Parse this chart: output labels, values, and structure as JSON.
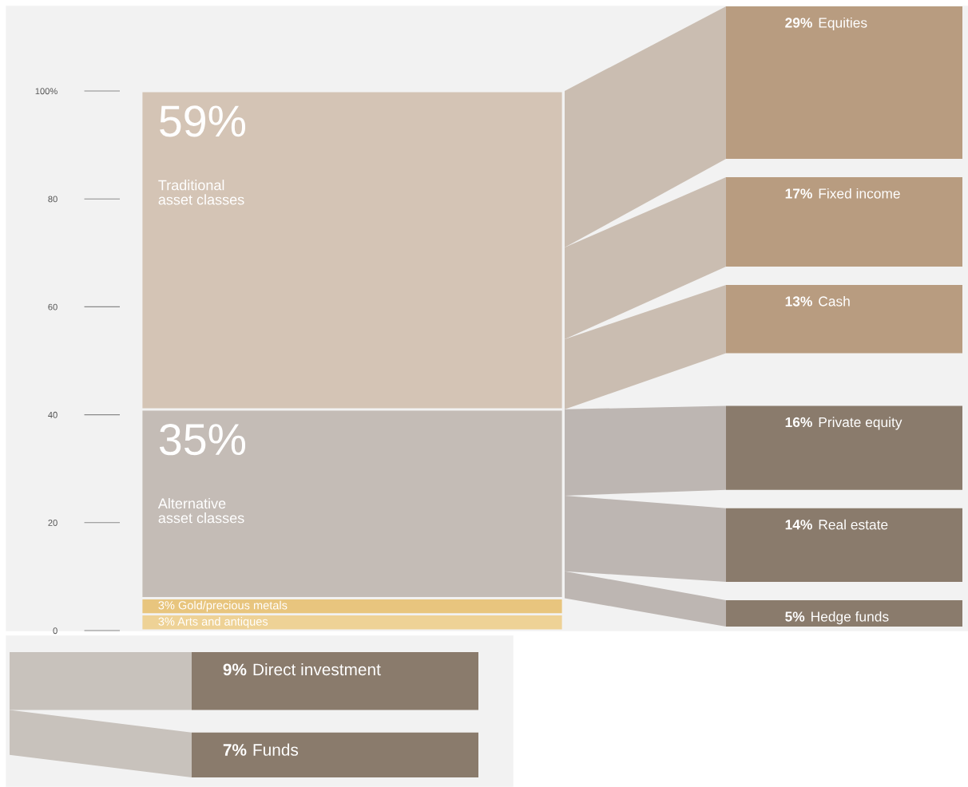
{
  "chart_data": [
    {
      "type": "bar",
      "stacked": true,
      "categories": [
        null
      ],
      "ylim": [
        0,
        100
      ],
      "yticks": [
        0,
        20,
        40,
        60,
        80,
        {
          "value": 100,
          "label": "100%"
        }
      ],
      "series": [
        {
          "name": "Arts and antiques",
          "color": "#eed296",
          "values": [
            3
          ],
          "value_labels": [
            "3%"
          ]
        },
        {
          "name": "Gold/precious metals",
          "color": "#e8c57e",
          "values": [
            3
          ],
          "value_labels": [
            "3%"
          ]
        },
        {
          "name": "Alternative\nasset classes",
          "color": "#c4bcb6",
          "values": [
            35
          ],
          "value_labels": [
            "35%"
          ]
        },
        {
          "name": "Traditional\nasset classes",
          "color": "#d4c4b5",
          "values": [
            59
          ],
          "value_labels": [
            "59%"
          ]
        }
      ]
    },
    {
      "type": "other",
      "categories": [
        "Equities",
        "Fixed income",
        "Cash",
        "Private equity",
        "Real estate",
        "Hedge funds"
      ],
      "series": [
        {
          "color": "#b89c80",
          "values": [
            29,
            17,
            13,
            null,
            null,
            null
          ],
          "value_labels": [
            "29%",
            "17%",
            "13%",
            null,
            null,
            null
          ]
        },
        {
          "color": "#8a7b6c",
          "values": [
            null,
            null,
            null,
            16,
            14,
            5
          ],
          "value_labels": [
            null,
            null,
            null,
            "16%",
            "14%",
            "5%"
          ]
        }
      ]
    },
    {
      "type": "other",
      "categories": [
        "Direct investment",
        "Funds"
      ],
      "series": [
        {
          "color": "#8a7b6c",
          "values": [
            9,
            7
          ],
          "value_labels": [
            "9%",
            "7%"
          ]
        }
      ]
    }
  ]
}
